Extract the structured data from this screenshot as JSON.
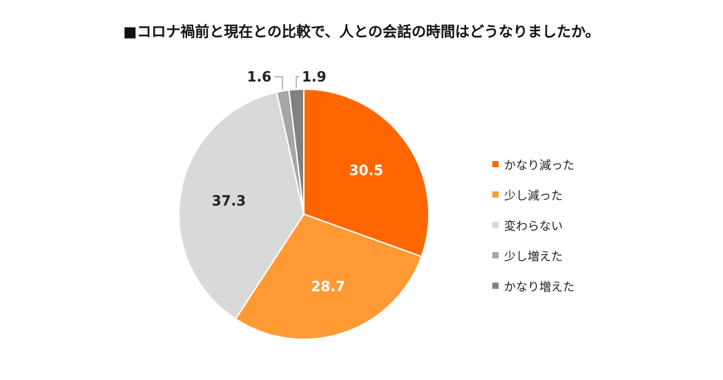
{
  "chart_data": {
    "type": "pie",
    "title": "■コロナ禍前と現在との比較で、人との会話の時間はどうなりましたか。",
    "categories": [
      "かなり減った",
      "少し減った",
      "変わらない",
      "少し増えた",
      "かなり増えた"
    ],
    "values": [
      30.5,
      28.7,
      37.3,
      1.6,
      1.9
    ],
    "data_labels": [
      "30.5",
      "28.7",
      "37.3",
      "1.6",
      "1.9"
    ],
    "colors": [
      "#ff6600",
      "#ff9933",
      "#d9d9d9",
      "#a6a6a6",
      "#808080"
    ],
    "start_angle": "12 o'clock",
    "direction": "clockwise",
    "legend_position": "right"
  }
}
